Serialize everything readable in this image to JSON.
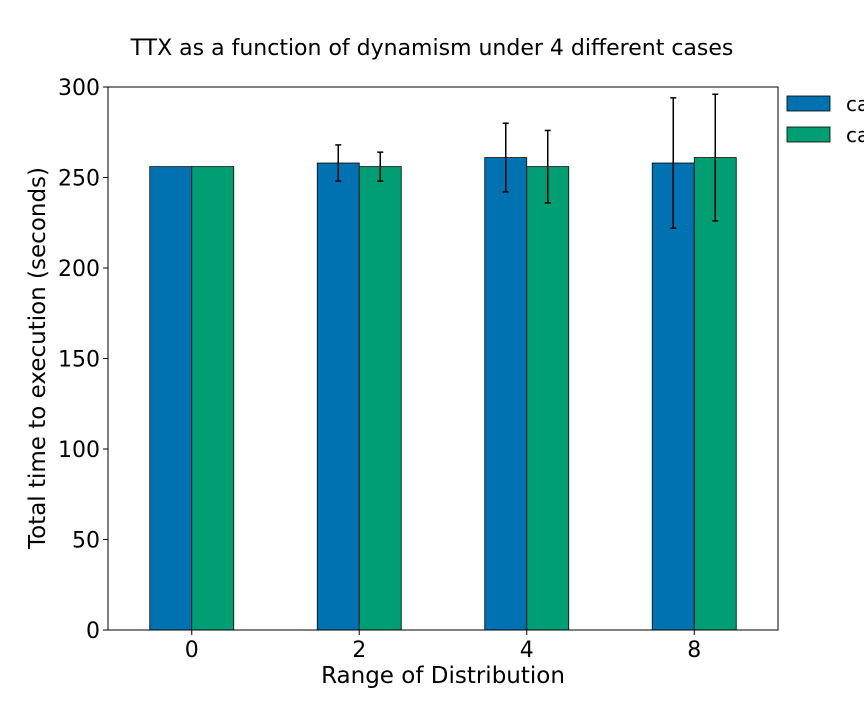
{
  "chart_data": {
    "type": "bar",
    "title": "TTX as a function of dynamism under 4 different cases",
    "xlabel": "Range of Distribution",
    "ylabel": "Total time to execution (seconds)",
    "categories": [
      "0",
      "2",
      "4",
      "8"
    ],
    "ylim": [
      0,
      300
    ],
    "yticks": [
      0,
      50,
      100,
      150,
      200,
      250,
      300
    ],
    "grid": false,
    "legend_position": "outside-top-right (clipped)",
    "series": [
      {
        "name": "ca",
        "color": "#0072B2",
        "values": [
          256,
          258,
          261,
          258
        ],
        "errors": [
          0,
          10,
          19,
          36
        ]
      },
      {
        "name": "ca",
        "color": "#009E73",
        "values": [
          256,
          256,
          256,
          261
        ],
        "errors": [
          0,
          8,
          20,
          35
        ]
      }
    ]
  }
}
